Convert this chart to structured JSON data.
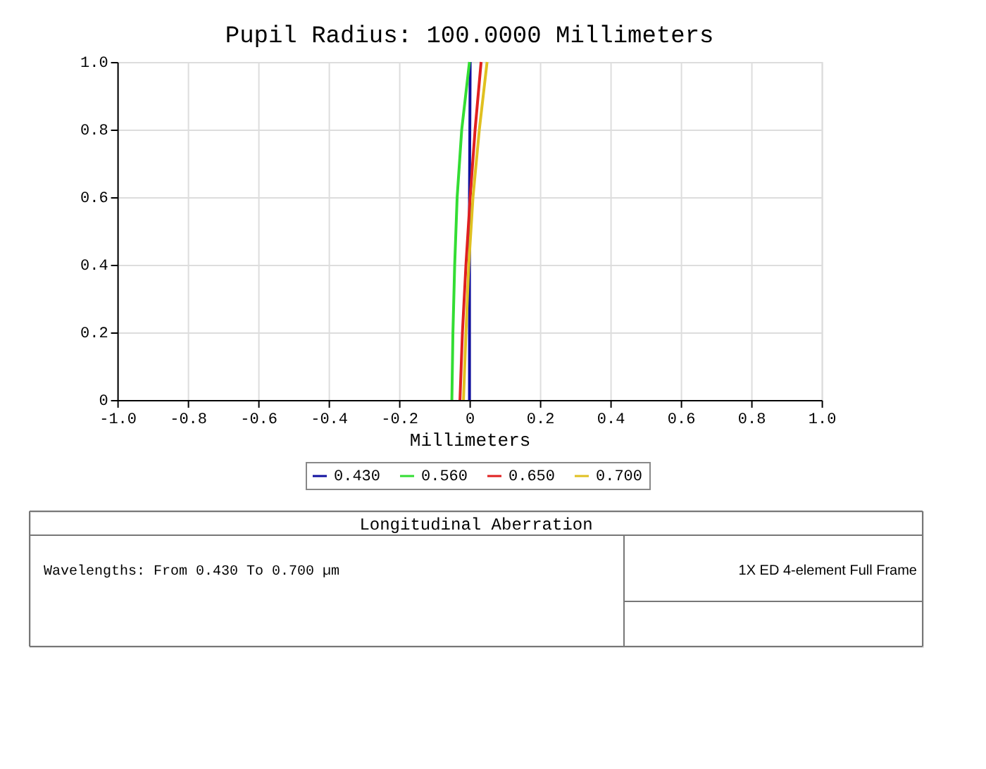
{
  "chart_data": {
    "type": "line",
    "title": "Pupil Radius: 100.0000 Millimeters",
    "xlabel": "Millimeters",
    "xlim": [
      -1,
      1
    ],
    "xticks": [
      {
        "value": -1,
        "label": "-1.0"
      },
      -0.8,
      -0.6,
      -0.4,
      -0.2,
      0,
      0.2,
      0.4,
      0.6,
      0.8,
      {
        "value": 1,
        "label": "1.0"
      }
    ],
    "ylim": [
      0,
      1
    ],
    "yticks": [
      0,
      0.2,
      0.4,
      0.6,
      0.8,
      {
        "value": 1,
        "label": "1.0"
      }
    ],
    "grid": true,
    "legend": "bottom",
    "marker": "none",
    "line_style": "solid",
    "series": [
      {
        "name": "0.430",
        "color": "#1010a0",
        "x": [
          0,
          0,
          0,
          0,
          0.001,
          0.002
        ],
        "values": [
          0,
          0.2,
          0.4,
          0.6,
          0.8,
          1
        ]
      },
      {
        "name": "0.560",
        "color": "#33dd33",
        "x": [
          -0.05,
          -0.047,
          -0.042,
          -0.035,
          -0.022,
          0
        ],
        "values": [
          0,
          0.2,
          0.4,
          0.6,
          0.8,
          1
        ]
      },
      {
        "name": "0.650",
        "color": "#e02020",
        "x": [
          -0.027,
          -0.02,
          -0.01,
          0.002,
          0.016,
          0.033
        ],
        "values": [
          0,
          0.2,
          0.4,
          0.6,
          0.8,
          1
        ]
      },
      {
        "name": "0.700",
        "color": "#e0c020",
        "x": [
          -0.017,
          -0.01,
          -0.002,
          0.01,
          0.028,
          0.05
        ],
        "values": [
          0,
          0.2,
          0.4,
          0.6,
          0.8,
          1
        ]
      }
    ],
    "annotations": [
      "Longitudinal Aberration",
      "Wavelengths: From 0.430 To 0.700 µm",
      "1X ED 4-element Full Frame"
    ]
  }
}
